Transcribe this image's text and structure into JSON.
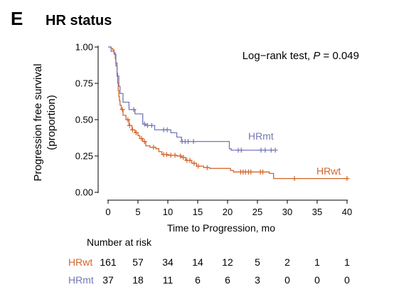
{
  "panel_letter": "E",
  "colors": {
    "hrwt": "#d4652a",
    "hrmt": "#7777b8",
    "axis": "#000000"
  },
  "chart_data": {
    "type": "kaplan-meier",
    "title": "HR status",
    "annotation": {
      "prefix": "Log−rank test, ",
      "p_symbol": "P",
      "suffix": " = 0.049"
    },
    "xlabel": "Time to Progression, mo",
    "ylabel_lines": [
      "Progression free survival",
      "(proportion)"
    ],
    "xlim": [
      0,
      40
    ],
    "ylim": [
      0,
      1
    ],
    "x_ticks": [
      0,
      5,
      10,
      15,
      20,
      25,
      30,
      35,
      40
    ],
    "y_ticks": [
      0.0,
      0.25,
      0.5,
      0.75,
      1.0
    ],
    "y_tick_labels": [
      "0.00",
      "0.25",
      "0.50",
      "0.75",
      "1.00"
    ],
    "grid": false,
    "series": [
      {
        "name": "HRwt",
        "color_key": "hrwt",
        "steps": [
          [
            0,
            1.0
          ],
          [
            0.3,
            1.0
          ],
          [
            0.5,
            0.99
          ],
          [
            0.8,
            0.98
          ],
          [
            1.0,
            0.96
          ],
          [
            1.2,
            0.92
          ],
          [
            1.3,
            0.87
          ],
          [
            1.5,
            0.82
          ],
          [
            1.6,
            0.75
          ],
          [
            1.7,
            0.7
          ],
          [
            1.8,
            0.66
          ],
          [
            1.9,
            0.63
          ],
          [
            2.0,
            0.6
          ],
          [
            2.2,
            0.57
          ],
          [
            2.5,
            0.53
          ],
          [
            3.0,
            0.5
          ],
          [
            3.5,
            0.46
          ],
          [
            4.0,
            0.43
          ],
          [
            4.5,
            0.41
          ],
          [
            5.0,
            0.39
          ],
          [
            5.3,
            0.37
          ],
          [
            5.8,
            0.35
          ],
          [
            6.3,
            0.32
          ],
          [
            7.0,
            0.31
          ],
          [
            8.0,
            0.3
          ],
          [
            8.5,
            0.28
          ],
          [
            9.0,
            0.26
          ],
          [
            10.0,
            0.255
          ],
          [
            11.5,
            0.25
          ],
          [
            12.3,
            0.24
          ],
          [
            13.0,
            0.22
          ],
          [
            14.0,
            0.2
          ],
          [
            14.8,
            0.18
          ],
          [
            16.0,
            0.17
          ],
          [
            17.0,
            0.165
          ],
          [
            20.5,
            0.15
          ],
          [
            21.0,
            0.14
          ],
          [
            27.0,
            0.13
          ],
          [
            27.7,
            0.095
          ],
          [
            40.0,
            0.095
          ]
        ],
        "censor_x": [
          2.4,
          3.3,
          3.6,
          4.1,
          4.7,
          5.6,
          6.1,
          7.6,
          9.3,
          9.8,
          10.5,
          11.2,
          12.1,
          12.6,
          13.2,
          13.7,
          14.4,
          15.1,
          16.6,
          22.2,
          22.6,
          23.0,
          23.5,
          23.9,
          25.5,
          25.9,
          31.2,
          40.0
        ],
        "at_risk": [
          161,
          57,
          34,
          14,
          12,
          5,
          2,
          1,
          1
        ]
      },
      {
        "name": "HRmt",
        "color_key": "hrmt",
        "steps": [
          [
            0,
            1.0
          ],
          [
            0.5,
            0.97
          ],
          [
            1.0,
            0.95
          ],
          [
            1.3,
            0.89
          ],
          [
            1.5,
            0.8
          ],
          [
            1.8,
            0.73
          ],
          [
            2.0,
            0.68
          ],
          [
            2.5,
            0.62
          ],
          [
            3.5,
            0.57
          ],
          [
            4.5,
            0.54
          ],
          [
            5.8,
            0.47
          ],
          [
            6.3,
            0.46
          ],
          [
            7.8,
            0.43
          ],
          [
            10.5,
            0.41
          ],
          [
            11.5,
            0.38
          ],
          [
            12.3,
            0.35
          ],
          [
            20.3,
            0.3
          ],
          [
            20.6,
            0.29
          ],
          [
            28.0,
            0.29
          ]
        ],
        "censor_x": [
          4.3,
          6.1,
          6.6,
          7.3,
          9.3,
          9.9,
          12.4,
          12.9,
          13.4,
          14.3,
          21.8,
          22.3,
          25.6,
          26.3,
          27.3,
          28.0
        ],
        "at_risk": [
          37,
          18,
          11,
          6,
          6,
          3,
          0,
          0,
          0
        ]
      }
    ],
    "risk_table": {
      "title": "Number at risk",
      "times": [
        0,
        5,
        10,
        15,
        20,
        25,
        30,
        35,
        40
      ]
    }
  }
}
